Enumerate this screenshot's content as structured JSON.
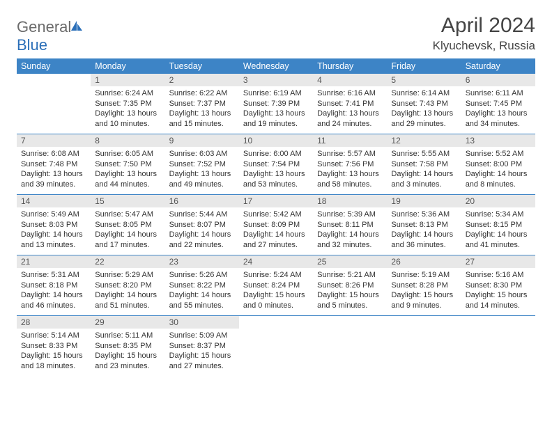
{
  "brand": {
    "part1": "General",
    "part2": "Blue"
  },
  "title": "April 2024",
  "location": "Klyuchevsk, Russia",
  "colors": {
    "headerBg": "#3d84c6",
    "headerText": "#ffffff",
    "dayNumBg": "#e8e8e8",
    "ruleColor": "#3d84c6",
    "logoGray": "#6b6b6b",
    "logoBlue": "#2b6fb8"
  },
  "weekdays": [
    "Sunday",
    "Monday",
    "Tuesday",
    "Wednesday",
    "Thursday",
    "Friday",
    "Saturday"
  ],
  "weeks": [
    [
      null,
      {
        "n": 1,
        "sunrise": "6:24 AM",
        "sunset": "7:35 PM",
        "daylight": "13 hours and 10 minutes."
      },
      {
        "n": 2,
        "sunrise": "6:22 AM",
        "sunset": "7:37 PM",
        "daylight": "13 hours and 15 minutes."
      },
      {
        "n": 3,
        "sunrise": "6:19 AM",
        "sunset": "7:39 PM",
        "daylight": "13 hours and 19 minutes."
      },
      {
        "n": 4,
        "sunrise": "6:16 AM",
        "sunset": "7:41 PM",
        "daylight": "13 hours and 24 minutes."
      },
      {
        "n": 5,
        "sunrise": "6:14 AM",
        "sunset": "7:43 PM",
        "daylight": "13 hours and 29 minutes."
      },
      {
        "n": 6,
        "sunrise": "6:11 AM",
        "sunset": "7:45 PM",
        "daylight": "13 hours and 34 minutes."
      }
    ],
    [
      {
        "n": 7,
        "sunrise": "6:08 AM",
        "sunset": "7:48 PM",
        "daylight": "13 hours and 39 minutes."
      },
      {
        "n": 8,
        "sunrise": "6:05 AM",
        "sunset": "7:50 PM",
        "daylight": "13 hours and 44 minutes."
      },
      {
        "n": 9,
        "sunrise": "6:03 AM",
        "sunset": "7:52 PM",
        "daylight": "13 hours and 49 minutes."
      },
      {
        "n": 10,
        "sunrise": "6:00 AM",
        "sunset": "7:54 PM",
        "daylight": "13 hours and 53 minutes."
      },
      {
        "n": 11,
        "sunrise": "5:57 AM",
        "sunset": "7:56 PM",
        "daylight": "13 hours and 58 minutes."
      },
      {
        "n": 12,
        "sunrise": "5:55 AM",
        "sunset": "7:58 PM",
        "daylight": "14 hours and 3 minutes."
      },
      {
        "n": 13,
        "sunrise": "5:52 AM",
        "sunset": "8:00 PM",
        "daylight": "14 hours and 8 minutes."
      }
    ],
    [
      {
        "n": 14,
        "sunrise": "5:49 AM",
        "sunset": "8:03 PM",
        "daylight": "14 hours and 13 minutes."
      },
      {
        "n": 15,
        "sunrise": "5:47 AM",
        "sunset": "8:05 PM",
        "daylight": "14 hours and 17 minutes."
      },
      {
        "n": 16,
        "sunrise": "5:44 AM",
        "sunset": "8:07 PM",
        "daylight": "14 hours and 22 minutes."
      },
      {
        "n": 17,
        "sunrise": "5:42 AM",
        "sunset": "8:09 PM",
        "daylight": "14 hours and 27 minutes."
      },
      {
        "n": 18,
        "sunrise": "5:39 AM",
        "sunset": "8:11 PM",
        "daylight": "14 hours and 32 minutes."
      },
      {
        "n": 19,
        "sunrise": "5:36 AM",
        "sunset": "8:13 PM",
        "daylight": "14 hours and 36 minutes."
      },
      {
        "n": 20,
        "sunrise": "5:34 AM",
        "sunset": "8:15 PM",
        "daylight": "14 hours and 41 minutes."
      }
    ],
    [
      {
        "n": 21,
        "sunrise": "5:31 AM",
        "sunset": "8:18 PM",
        "daylight": "14 hours and 46 minutes."
      },
      {
        "n": 22,
        "sunrise": "5:29 AM",
        "sunset": "8:20 PM",
        "daylight": "14 hours and 51 minutes."
      },
      {
        "n": 23,
        "sunrise": "5:26 AM",
        "sunset": "8:22 PM",
        "daylight": "14 hours and 55 minutes."
      },
      {
        "n": 24,
        "sunrise": "5:24 AM",
        "sunset": "8:24 PM",
        "daylight": "15 hours and 0 minutes."
      },
      {
        "n": 25,
        "sunrise": "5:21 AM",
        "sunset": "8:26 PM",
        "daylight": "15 hours and 5 minutes."
      },
      {
        "n": 26,
        "sunrise": "5:19 AM",
        "sunset": "8:28 PM",
        "daylight": "15 hours and 9 minutes."
      },
      {
        "n": 27,
        "sunrise": "5:16 AM",
        "sunset": "8:30 PM",
        "daylight": "15 hours and 14 minutes."
      }
    ],
    [
      {
        "n": 28,
        "sunrise": "5:14 AM",
        "sunset": "8:33 PM",
        "daylight": "15 hours and 18 minutes."
      },
      {
        "n": 29,
        "sunrise": "5:11 AM",
        "sunset": "8:35 PM",
        "daylight": "15 hours and 23 minutes."
      },
      {
        "n": 30,
        "sunrise": "5:09 AM",
        "sunset": "8:37 PM",
        "daylight": "15 hours and 27 minutes."
      },
      null,
      null,
      null,
      null
    ]
  ],
  "labels": {
    "sunrise": "Sunrise:",
    "sunset": "Sunset:",
    "daylight": "Daylight:"
  }
}
